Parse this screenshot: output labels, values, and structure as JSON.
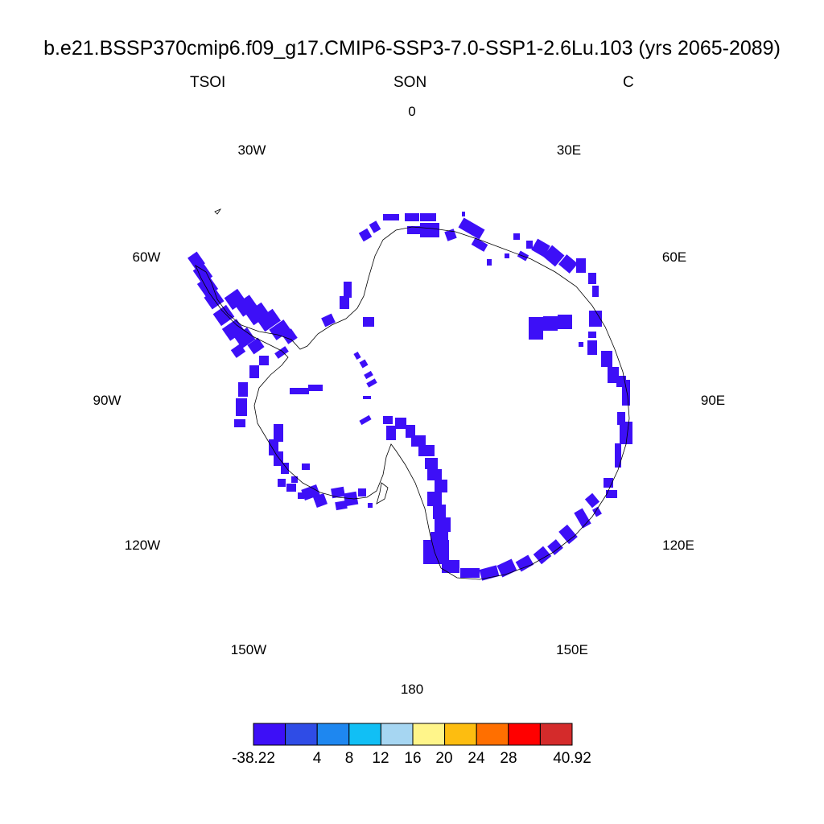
{
  "title": "b.e21.BSSP370cmip6.f09_g17.CMIP6-SSP3-7.0-SSP1-2.6Lu.103 (yrs 2065-2089)",
  "left_label": "TSOI",
  "center_label": "SON",
  "right_label": "C",
  "longitude_labels": [
    "0",
    "30E",
    "60E",
    "90E",
    "120E",
    "150E",
    "180",
    "150W",
    "120W",
    "90W",
    "60W",
    "30W"
  ],
  "colorbar": {
    "colors": [
      "#3d0ff7",
      "#2f4ce6",
      "#1e87f0",
      "#11bff5",
      "#a6d6f2",
      "#fff58a",
      "#fdbd10",
      "#ff6f00",
      "#ff0000",
      "#d42b2b"
    ],
    "tick_labels": [
      "-38.22",
      "4",
      "8",
      "12",
      "16",
      "20",
      "24",
      "28",
      "40.92"
    ]
  },
  "field_color": "#3d0ff7"
}
